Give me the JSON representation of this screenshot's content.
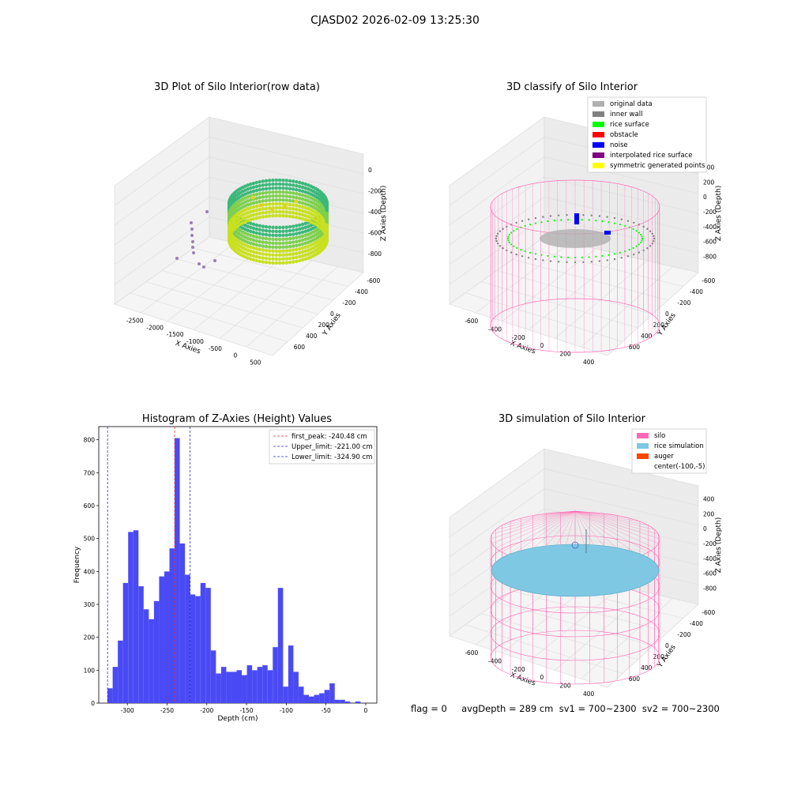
{
  "suptitle": "CJASD02 2026-02-09 13:25:30",
  "footer": "flag = 0     avgDepth = 289 cm  sv1 = 700~2300  sv2 = 700~2300",
  "colors": {
    "hist_bar": "#4a4af5",
    "first_peak": "#e83030",
    "limits": "#2a2ad0",
    "silo": "#ff69b4",
    "rice_sim": "#7ec8e3",
    "auger": "#ff4500",
    "original": "#b0b0b0",
    "inner_wall": "#808080",
    "rice_surface": "#00ff00",
    "obstacle": "#ff0000",
    "noise": "#0000ff",
    "interp": "#800080",
    "symmetric": "#ffff00"
  },
  "chart_data": [
    {
      "type": "scatter3d",
      "title": "3D Plot of Silo Interior(row data)",
      "xlabel": "X Axies",
      "ylabel": "Y Axies",
      "zlabel": "Z Axies (Depth)",
      "xticks": [
        "-2500",
        "-2000",
        "-1500",
        "-1000",
        "-500",
        "0",
        "500"
      ],
      "yticks": [
        "-600",
        "-400",
        "-200",
        "0",
        "200",
        "400",
        "600"
      ],
      "zticks": [
        "0",
        "-200",
        "-400",
        "-600",
        "-800"
      ]
    },
    {
      "type": "scatter3d",
      "title": "3D classify of Silo Interior",
      "xlabel": "X Axies",
      "ylabel": "Y Axies",
      "zlabel": "Z Axies (Depth)",
      "xticks": [
        "-600",
        "-400",
        "-200",
        "0",
        "200",
        "400"
      ],
      "yticks": [
        "-600",
        "-400",
        "-200",
        "0",
        "200",
        "400",
        "600"
      ],
      "zticks": [
        "400",
        "200",
        "0",
        "-200",
        "-400",
        "-600",
        "-800"
      ],
      "legend": [
        {
          "label": "original data",
          "color": "#b0b0b0"
        },
        {
          "label": "inner wall",
          "color": "#808080"
        },
        {
          "label": "rice surface",
          "color": "#00ff00"
        },
        {
          "label": "obstacle",
          "color": "#ff0000"
        },
        {
          "label": "noise",
          "color": "#0000ff"
        },
        {
          "label": "interpolated rice surface",
          "color": "#800080"
        },
        {
          "label": "symmetric generated points",
          "color": "#ffff00"
        }
      ]
    },
    {
      "type": "bar",
      "title": "Histogram of Z-Axies (Height) Values",
      "xlabel": "Depth (cm)",
      "ylabel": "Frequency",
      "xlim": [
        -336,
        14
      ],
      "ylim": [
        0,
        840
      ],
      "xticks": [
        -300,
        -250,
        -200,
        -150,
        -100,
        -50,
        0
      ],
      "yticks": [
        0,
        100,
        200,
        300,
        400,
        500,
        600,
        700,
        800
      ],
      "bin_start": -325,
      "bin_width": 6.5,
      "values": [
        45,
        110,
        190,
        365,
        520,
        525,
        355,
        285,
        255,
        310,
        385,
        400,
        470,
        805,
        485,
        390,
        330,
        325,
        365,
        350,
        160,
        90,
        110,
        95,
        95,
        100,
        85,
        115,
        100,
        110,
        115,
        100,
        170,
        350,
        50,
        175,
        95,
        50,
        25,
        20,
        25,
        30,
        40,
        60,
        10,
        10,
        5,
        0,
        5
      ],
      "vlines": [
        {
          "label": "first_peak: -240.48 cm",
          "x": -240.48,
          "color": "#e83030"
        },
        {
          "label": "Upper_limit: -221.00 cm",
          "x": -221.0,
          "color": "#2a2ad0"
        },
        {
          "label": "Lower_limit: -324.90 cm",
          "x": -324.9,
          "color": "#2a2ad0"
        }
      ]
    },
    {
      "type": "surface3d",
      "title": "3D simulation of Silo Interior",
      "xlabel": "X Axies",
      "ylabel": "Y Axies",
      "zlabel": "Z Axies (Depth)",
      "xticks": [
        "-600",
        "-400",
        "-200",
        "0",
        "200",
        "400"
      ],
      "yticks": [
        "-600",
        "-400",
        "-200",
        "0",
        "200",
        "400",
        "600"
      ],
      "zticks": [
        "400",
        "200",
        "0",
        "-200",
        "-400",
        "-600",
        "-800"
      ],
      "legend": [
        {
          "label": "silo",
          "color": "#ff69b4"
        },
        {
          "label": "rice simulation",
          "color": "#7ec8e3"
        },
        {
          "label": "auger",
          "color": "#ff4500"
        },
        {
          "label": "center(-100,-5)",
          "color": ""
        }
      ]
    }
  ]
}
